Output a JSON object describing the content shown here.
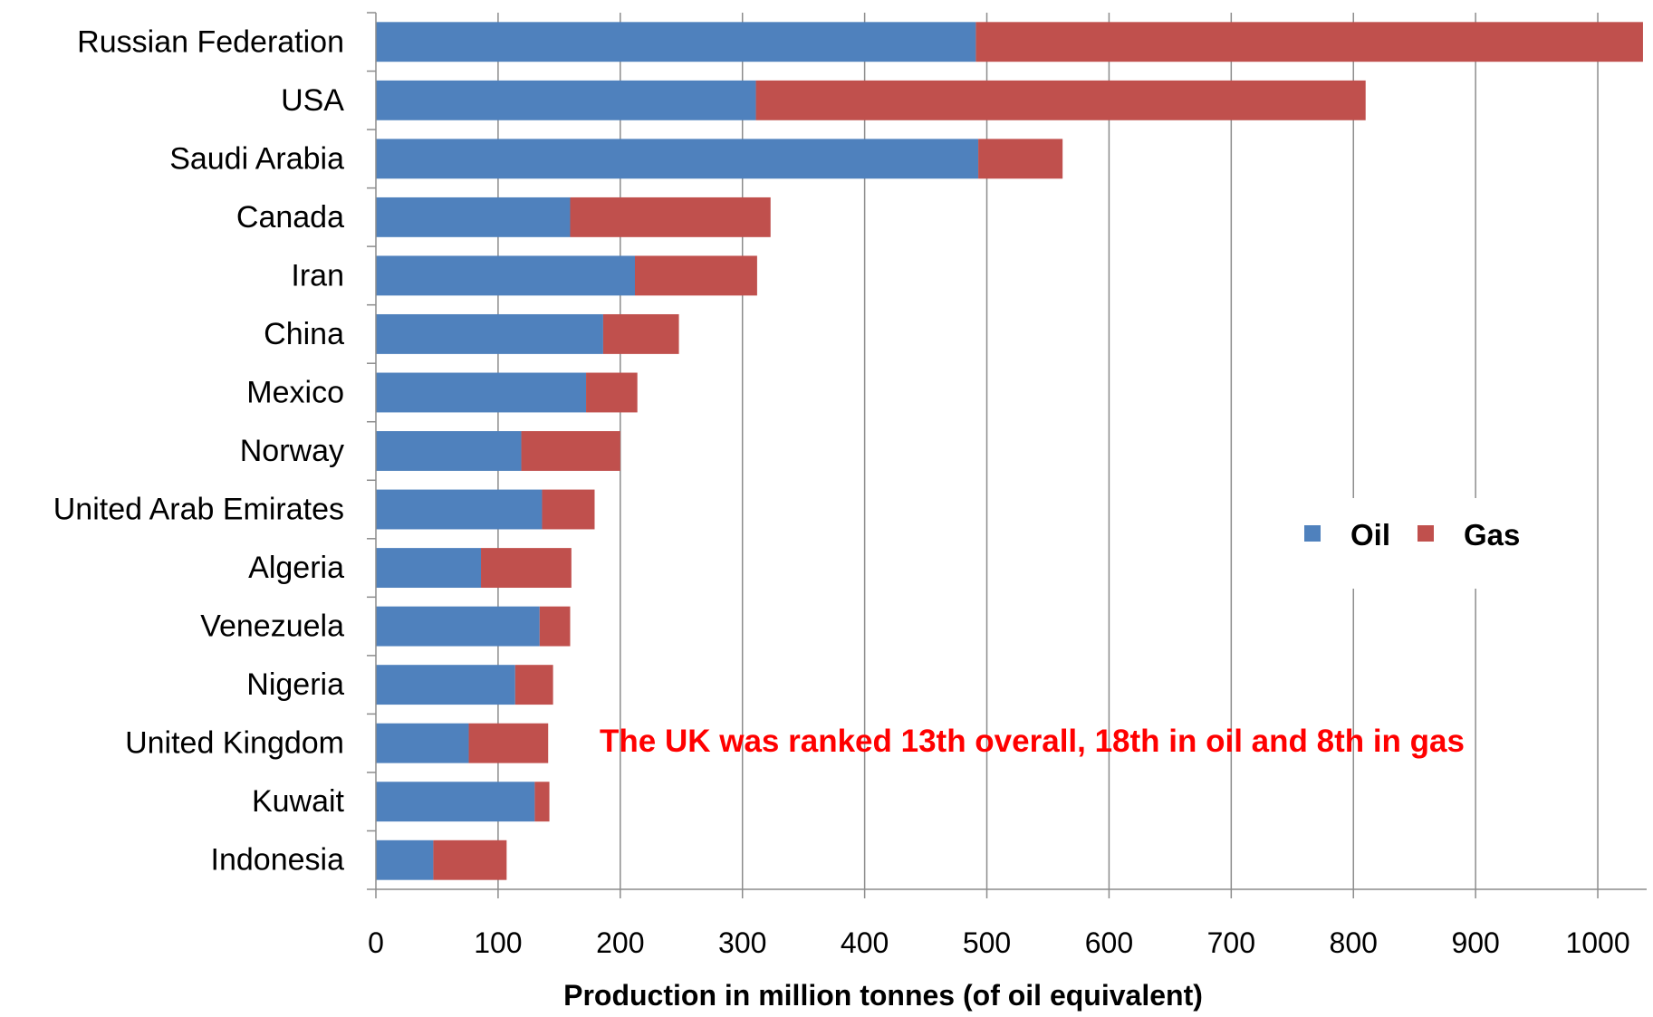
{
  "chart_data": {
    "type": "bar",
    "orientation": "horizontal",
    "stacked": true,
    "categories": [
      "Russian Federation",
      "USA",
      "Saudi Arabia",
      "Canada",
      "Iran",
      "China",
      "Mexico",
      "Norway",
      "United Arab Emirates",
      "Algeria",
      "Venezuela",
      "Nigeria",
      "United Kingdom",
      "Kuwait",
      "Indonesia"
    ],
    "series": [
      {
        "name": "Oil",
        "color": "#4F81BD",
        "values": [
          491,
          311,
          493,
          159,
          212,
          186,
          172,
          119,
          136,
          86,
          134,
          114,
          76,
          130,
          47
        ]
      },
      {
        "name": "Gas",
        "color": "#C0504D",
        "values": [
          546,
          499,
          69,
          164,
          100,
          62,
          42,
          81,
          43,
          74,
          25,
          31,
          65,
          12,
          60
        ]
      }
    ],
    "xlabel": "Production in million tonnes (of oil equivalent)",
    "xticks": [
      "0",
      "100",
      "200",
      "300",
      "400",
      "500",
      "600",
      "700",
      "800",
      "900",
      "1000"
    ],
    "xlim": [
      0,
      1040
    ],
    "grid": "vertical",
    "legend": "right-middle",
    "annotation": {
      "text": "The UK was ranked 13th overall, 18th in oil and 8th in gas",
      "color": "#FF0000"
    }
  }
}
